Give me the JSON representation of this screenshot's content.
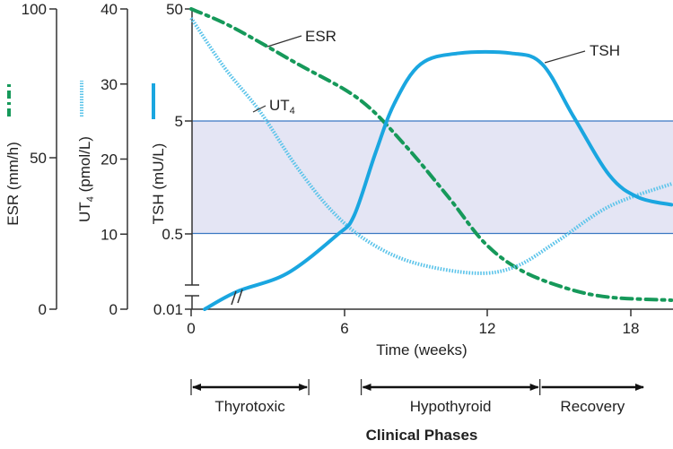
{
  "chart_data": {
    "type": "line",
    "xlabel": "Time (weeks)",
    "x_ticks": [
      0,
      6,
      12,
      18
    ],
    "xlim": [
      0,
      19.7
    ],
    "axes": {
      "esr": {
        "label": "ESR (mm/h)",
        "ticks": [
          "0",
          "50",
          "100"
        ],
        "range": [
          0,
          100
        ]
      },
      "ut4": {
        "label_main": "UT",
        "label_sub": "4",
        "label_unit": " (pmol/L)",
        "ticks": [
          "0",
          "10",
          "20",
          "30",
          "40"
        ],
        "range": [
          0,
          40
        ]
      },
      "tsh": {
        "label": "TSH (mU/L)",
        "ticks": [
          "0.01",
          "0.5",
          "5",
          "50"
        ],
        "scale": "log (broken below 0.5)"
      }
    },
    "normal_range_tsh": [
      0.5,
      5
    ],
    "series": [
      {
        "name": "ESR",
        "axis": "esr",
        "style": "dash-dot",
        "color": "#16995a",
        "x": [
          0,
          1.6,
          4.1,
          6.6,
          8.5,
          10.4,
          11.9,
          13.4,
          15.3,
          17.1,
          19.7
        ],
        "y": [
          100,
          94,
          82,
          70,
          55,
          37,
          22,
          13,
          7,
          4,
          3
        ]
      },
      {
        "name": "UT4",
        "name_main": "UT",
        "name_sub": "4",
        "axis": "ut4",
        "style": "dotted",
        "color": "#5cc4ea",
        "x": [
          0,
          1.3,
          2.7,
          4.1,
          5.5,
          7.0,
          8.9,
          11.5,
          13.2,
          14.9,
          17.1,
          19.7
        ],
        "y": [
          38.8,
          32.2,
          26.3,
          19.1,
          13.1,
          9.0,
          6.2,
          4.8,
          5.7,
          9.0,
          13.7,
          16.7
        ]
      },
      {
        "name": "TSH",
        "axis": "tsh",
        "style": "solid",
        "color": "#1aa6e0",
        "x": [
          0.53,
          1.8,
          3.75,
          5.7,
          6.4,
          7.3,
          8.1,
          9.2,
          10.8,
          13.0,
          14.3,
          15.6,
          17.1,
          18.3,
          19.7
        ],
        "y": [
          0.01,
          0.025,
          0.064,
          0.47,
          0.72,
          2.6,
          7.2,
          16,
          20,
          20,
          16,
          5.5,
          1.65,
          1.05,
          0.9
        ]
      }
    ],
    "phases_title": "Clinical Phases",
    "phases": [
      {
        "label": "Thyrotoxic",
        "start": 0,
        "end": 4.6
      },
      {
        "label": "Hypothyroid",
        "start": 6.7,
        "end": 14.2
      },
      {
        "label": "Recovery",
        "start": 14.2,
        "end": 18.6
      }
    ],
    "colors": {
      "band": "#e4e5f4",
      "band_line": "#3b78c2",
      "axis": "#333333"
    }
  }
}
